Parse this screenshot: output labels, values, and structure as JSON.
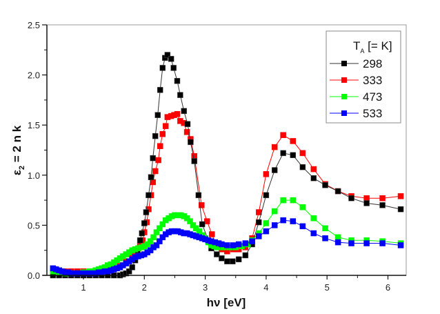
{
  "chart_data": {
    "type": "line",
    "title": "",
    "xlabel": "hν  [eV]",
    "ylabel_main": "ε",
    "ylabel_sub": "2",
    "ylabel_rest": " = 2 n k",
    "xlim": [
      0.4,
      6.3
    ],
    "ylim": [
      0.0,
      2.5
    ],
    "xticks": [
      1,
      2,
      3,
      4,
      5,
      6
    ],
    "xtick_labels": [
      "1",
      "2",
      "3",
      "4",
      "5",
      "6"
    ],
    "yticks": [
      0.0,
      0.5,
      1.0,
      1.5,
      2.0,
      2.5
    ],
    "ytick_labels": [
      "0.0",
      "0.5",
      "1.0",
      "1.5",
      "2.0",
      "2.5"
    ],
    "grid": false,
    "legend": {
      "placement": "top-right",
      "title_main": "T",
      "title_sub": "A",
      "title_rest": " [= K]"
    },
    "series": [
      {
        "name": "298",
        "color": "#000000",
        "points": [
          [
            0.5,
            0.0
          ],
          [
            0.6,
            0.0
          ],
          [
            0.7,
            0.0
          ],
          [
            0.8,
            0.0
          ],
          [
            0.9,
            0.0
          ],
          [
            1.0,
            0.0
          ],
          [
            1.1,
            0.0
          ],
          [
            1.2,
            0.0
          ],
          [
            1.3,
            0.0
          ],
          [
            1.4,
            0.0
          ],
          [
            1.5,
            0.0
          ],
          [
            1.6,
            0.0
          ],
          [
            1.65,
            0.01
          ],
          [
            1.7,
            0.02
          ],
          [
            1.75,
            0.04
          ],
          [
            1.8,
            0.08
          ],
          [
            1.85,
            0.15
          ],
          [
            1.89,
            0.25
          ],
          [
            1.93,
            0.35
          ],
          [
            1.96,
            0.42
          ],
          [
            2.0,
            0.52
          ],
          [
            2.03,
            0.63
          ],
          [
            2.07,
            0.8
          ],
          [
            2.11,
            0.98
          ],
          [
            2.14,
            1.17
          ],
          [
            2.18,
            1.39
          ],
          [
            2.22,
            1.6
          ],
          [
            2.26,
            1.85
          ],
          [
            2.3,
            2.07
          ],
          [
            2.34,
            2.17
          ],
          [
            2.38,
            2.2
          ],
          [
            2.44,
            2.16
          ],
          [
            2.48,
            2.07
          ],
          [
            2.54,
            1.94
          ],
          [
            2.59,
            1.8
          ],
          [
            2.65,
            1.64
          ],
          [
            2.71,
            1.51
          ],
          [
            2.76,
            1.33
          ],
          [
            2.82,
            1.14
          ],
          [
            2.89,
            0.8
          ],
          [
            2.95,
            0.51
          ],
          [
            3.1,
            0.27
          ],
          [
            3.19,
            0.21
          ],
          [
            3.27,
            0.17
          ],
          [
            3.36,
            0.14
          ],
          [
            3.45,
            0.14
          ],
          [
            3.55,
            0.16
          ],
          [
            3.66,
            0.2
          ],
          [
            3.77,
            0.31
          ],
          [
            3.88,
            0.53
          ],
          [
            4.0,
            0.8
          ],
          [
            4.14,
            1.05
          ],
          [
            4.28,
            1.22
          ],
          [
            4.44,
            1.2
          ],
          [
            4.6,
            1.08
          ],
          [
            4.78,
            0.97
          ],
          [
            4.97,
            0.9
          ],
          [
            5.18,
            0.84
          ],
          [
            5.4,
            0.77
          ],
          [
            5.65,
            0.72
          ],
          [
            5.91,
            0.7
          ],
          [
            6.21,
            0.66
          ]
        ]
      },
      {
        "name": "333",
        "color": "#ff0000",
        "points": [
          [
            0.5,
            0.02
          ],
          [
            0.6,
            0.03
          ],
          [
            0.7,
            0.04
          ],
          [
            0.8,
            0.04
          ],
          [
            0.9,
            0.04
          ],
          [
            1.0,
            0.04
          ],
          [
            1.1,
            0.04
          ],
          [
            1.2,
            0.04
          ],
          [
            1.3,
            0.04
          ],
          [
            1.4,
            0.05
          ],
          [
            1.5,
            0.07
          ],
          [
            1.6,
            0.1
          ],
          [
            1.7,
            0.14
          ],
          [
            1.8,
            0.19
          ],
          [
            1.87,
            0.24
          ],
          [
            1.93,
            0.3
          ],
          [
            1.97,
            0.35
          ],
          [
            2.0,
            0.43
          ],
          [
            2.04,
            0.53
          ],
          [
            2.07,
            0.66
          ],
          [
            2.11,
            0.8
          ],
          [
            2.14,
            0.93
          ],
          [
            2.18,
            1.04
          ],
          [
            2.23,
            1.15
          ],
          [
            2.26,
            1.29
          ],
          [
            2.3,
            1.41
          ],
          [
            2.35,
            1.49
          ],
          [
            2.38,
            1.58
          ],
          [
            2.44,
            1.59
          ],
          [
            2.49,
            1.6
          ],
          [
            2.54,
            1.61
          ],
          [
            2.59,
            1.54
          ],
          [
            2.65,
            1.52
          ],
          [
            2.7,
            1.43
          ],
          [
            2.76,
            1.36
          ],
          [
            2.82,
            1.19
          ],
          [
            2.94,
            0.7
          ],
          [
            3.03,
            0.54
          ],
          [
            3.11,
            0.41
          ],
          [
            3.18,
            0.3
          ],
          [
            3.27,
            0.26
          ],
          [
            3.36,
            0.24
          ],
          [
            3.46,
            0.26
          ],
          [
            3.55,
            0.26
          ],
          [
            3.66,
            0.28
          ],
          [
            3.77,
            0.37
          ],
          [
            3.88,
            0.63
          ],
          [
            4.0,
            1.01
          ],
          [
            4.14,
            1.28
          ],
          [
            4.28,
            1.4
          ],
          [
            4.44,
            1.34
          ],
          [
            4.6,
            1.22
          ],
          [
            4.78,
            1.06
          ],
          [
            4.97,
            0.91
          ],
          [
            5.18,
            0.84
          ],
          [
            5.4,
            0.79
          ],
          [
            5.65,
            0.77
          ],
          [
            5.91,
            0.77
          ],
          [
            6.21,
            0.79
          ]
        ]
      },
      {
        "name": "473",
        "color": "#00ff00",
        "points": [
          [
            0.5,
            0.04
          ],
          [
            0.55,
            0.04
          ],
          [
            0.6,
            0.03
          ],
          [
            0.65,
            0.03
          ],
          [
            0.7,
            0.02
          ],
          [
            0.75,
            0.02
          ],
          [
            0.8,
            0.02
          ],
          [
            0.85,
            0.02
          ],
          [
            0.9,
            0.02
          ],
          [
            0.95,
            0.02
          ],
          [
            1.0,
            0.03
          ],
          [
            1.05,
            0.03
          ],
          [
            1.1,
            0.04
          ],
          [
            1.15,
            0.04
          ],
          [
            1.2,
            0.05
          ],
          [
            1.25,
            0.06
          ],
          [
            1.3,
            0.07
          ],
          [
            1.35,
            0.08
          ],
          [
            1.4,
            0.1
          ],
          [
            1.45,
            0.11
          ],
          [
            1.5,
            0.13
          ],
          [
            1.55,
            0.15
          ],
          [
            1.6,
            0.17
          ],
          [
            1.65,
            0.19
          ],
          [
            1.7,
            0.21
          ],
          [
            1.75,
            0.23
          ],
          [
            1.8,
            0.25
          ],
          [
            1.85,
            0.26
          ],
          [
            1.9,
            0.27
          ],
          [
            1.95,
            0.28
          ],
          [
            2.0,
            0.29
          ],
          [
            2.05,
            0.31
          ],
          [
            2.1,
            0.34
          ],
          [
            2.15,
            0.38
          ],
          [
            2.2,
            0.43
          ],
          [
            2.25,
            0.47
          ],
          [
            2.3,
            0.51
          ],
          [
            2.35,
            0.55
          ],
          [
            2.4,
            0.57
          ],
          [
            2.45,
            0.59
          ],
          [
            2.5,
            0.6
          ],
          [
            2.55,
            0.6
          ],
          [
            2.6,
            0.6
          ],
          [
            2.65,
            0.59
          ],
          [
            2.7,
            0.57
          ],
          [
            2.75,
            0.54
          ],
          [
            2.8,
            0.5
          ],
          [
            2.85,
            0.47
          ],
          [
            2.9,
            0.44
          ],
          [
            2.95,
            0.4
          ],
          [
            3.0,
            0.37
          ],
          [
            3.05,
            0.33
          ],
          [
            3.1,
            0.3
          ],
          [
            3.15,
            0.29
          ],
          [
            3.2,
            0.28
          ],
          [
            3.3,
            0.28
          ],
          [
            3.4,
            0.28
          ],
          [
            3.5,
            0.28
          ],
          [
            3.6,
            0.29
          ],
          [
            3.7,
            0.31
          ],
          [
            3.77,
            0.35
          ],
          [
            3.88,
            0.42
          ],
          [
            4.0,
            0.52
          ],
          [
            4.14,
            0.64
          ],
          [
            4.28,
            0.75
          ],
          [
            4.44,
            0.75
          ],
          [
            4.6,
            0.68
          ],
          [
            4.78,
            0.57
          ],
          [
            4.97,
            0.47
          ],
          [
            5.18,
            0.38
          ],
          [
            5.4,
            0.35
          ],
          [
            5.65,
            0.35
          ],
          [
            5.91,
            0.34
          ],
          [
            6.21,
            0.32
          ]
        ]
      },
      {
        "name": "533",
        "color": "#0000ff",
        "points": [
          [
            0.5,
            0.07
          ],
          [
            0.55,
            0.06
          ],
          [
            0.6,
            0.05
          ],
          [
            0.65,
            0.04
          ],
          [
            0.7,
            0.03
          ],
          [
            0.75,
            0.03
          ],
          [
            0.8,
            0.02
          ],
          [
            0.85,
            0.02
          ],
          [
            0.9,
            0.02
          ],
          [
            0.95,
            0.02
          ],
          [
            1.0,
            0.02
          ],
          [
            1.05,
            0.02
          ],
          [
            1.1,
            0.02
          ],
          [
            1.15,
            0.02
          ],
          [
            1.2,
            0.02
          ],
          [
            1.25,
            0.03
          ],
          [
            1.3,
            0.03
          ],
          [
            1.35,
            0.04
          ],
          [
            1.4,
            0.04
          ],
          [
            1.45,
            0.05
          ],
          [
            1.5,
            0.06
          ],
          [
            1.55,
            0.07
          ],
          [
            1.6,
            0.08
          ],
          [
            1.65,
            0.1
          ],
          [
            1.7,
            0.12
          ],
          [
            1.75,
            0.14
          ],
          [
            1.8,
            0.16
          ],
          [
            1.85,
            0.18
          ],
          [
            1.9,
            0.19
          ],
          [
            1.95,
            0.2
          ],
          [
            2.0,
            0.21
          ],
          [
            2.05,
            0.23
          ],
          [
            2.1,
            0.25
          ],
          [
            2.15,
            0.28
          ],
          [
            2.2,
            0.3
          ],
          [
            2.25,
            0.34
          ],
          [
            2.3,
            0.38
          ],
          [
            2.35,
            0.41
          ],
          [
            2.4,
            0.43
          ],
          [
            2.45,
            0.44
          ],
          [
            2.5,
            0.44
          ],
          [
            2.55,
            0.44
          ],
          [
            2.6,
            0.43
          ],
          [
            2.65,
            0.42
          ],
          [
            2.7,
            0.42
          ],
          [
            2.75,
            0.41
          ],
          [
            2.8,
            0.4
          ],
          [
            2.85,
            0.39
          ],
          [
            2.9,
            0.38
          ],
          [
            2.95,
            0.37
          ],
          [
            3.0,
            0.36
          ],
          [
            3.05,
            0.35
          ],
          [
            3.1,
            0.34
          ],
          [
            3.16,
            0.33
          ],
          [
            3.22,
            0.32
          ],
          [
            3.27,
            0.31
          ],
          [
            3.36,
            0.3
          ],
          [
            3.46,
            0.3
          ],
          [
            3.55,
            0.31
          ],
          [
            3.66,
            0.32
          ],
          [
            3.77,
            0.34
          ],
          [
            3.88,
            0.39
          ],
          [
            4.0,
            0.44
          ],
          [
            4.14,
            0.5
          ],
          [
            4.28,
            0.55
          ],
          [
            4.44,
            0.54
          ],
          [
            4.6,
            0.49
          ],
          [
            4.78,
            0.42
          ],
          [
            4.97,
            0.37
          ],
          [
            5.18,
            0.33
          ],
          [
            5.4,
            0.32
          ],
          [
            5.65,
            0.32
          ],
          [
            5.91,
            0.32
          ],
          [
            6.21,
            0.3
          ]
        ]
      }
    ]
  }
}
